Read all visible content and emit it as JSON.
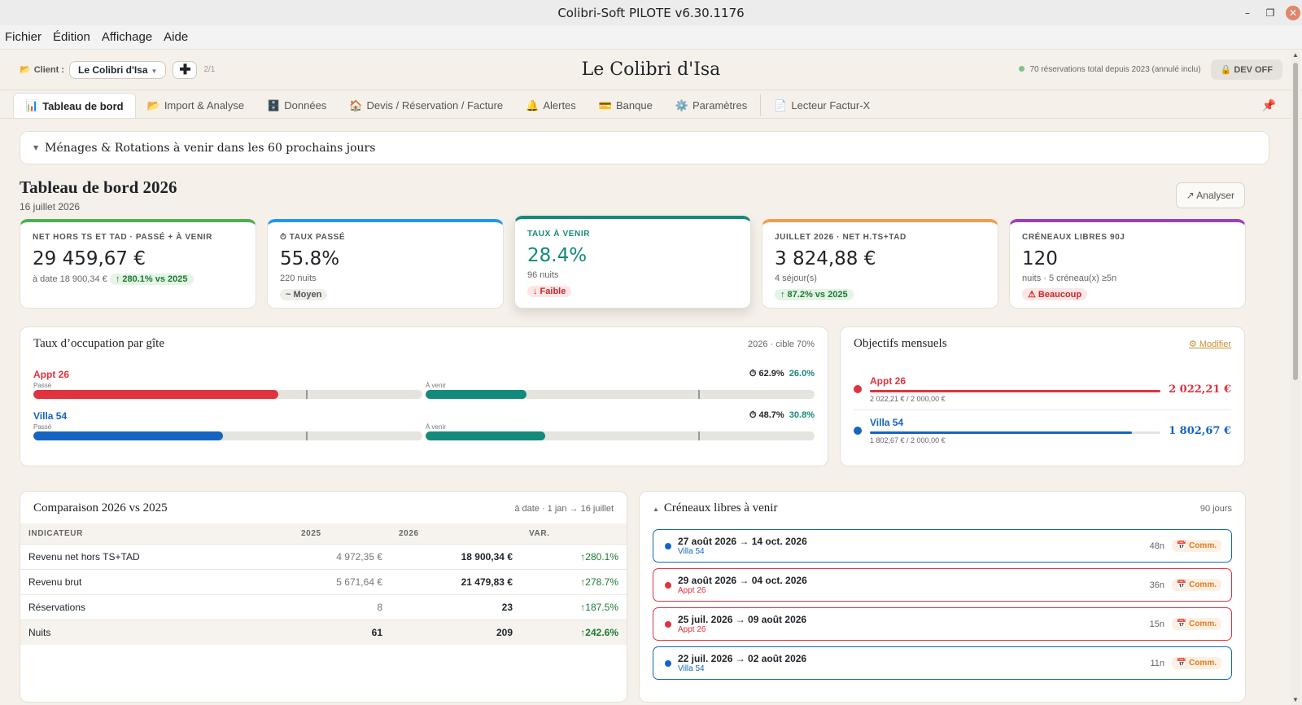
{
  "window": {
    "title": "Colibri-Soft PILOTE v6.30.1176"
  },
  "menu": [
    "Fichier",
    "Édition",
    "Affichage",
    "Aide"
  ],
  "header": {
    "client_label": "Client :",
    "client_value": "Le Colibri d'Isa",
    "count": "2/1",
    "title": "Le Colibri d'Isa",
    "status": "70 réservations total depuis 2023 (annulé inclu)",
    "dev_btn": "🔒 DEV OFF"
  },
  "tabs": [
    {
      "label": "Tableau de bord",
      "icon": "📊"
    },
    {
      "label": "Import & Analyse",
      "icon": "📂"
    },
    {
      "label": "Données",
      "icon": "🗄️"
    },
    {
      "label": "Devis / Réservation / Facture",
      "icon": "🏠"
    },
    {
      "label": "Alertes",
      "icon": "🔔"
    },
    {
      "label": "Banque",
      "icon": "💳"
    },
    {
      "label": "Paramètres",
      "icon": "⚙️"
    },
    {
      "label": "Lecteur Factur-X",
      "icon": "📄"
    }
  ],
  "collapse": "Ménages & Rotations à venir dans les 60 prochains jours",
  "dashboard": {
    "title": "Tableau de bord 2026",
    "date": "16 juillet 2026",
    "analyze": "↗ Analyser"
  },
  "kpis": [
    {
      "label": "NET HORS TS ET TAD · PASSÉ + À VENIR",
      "value": "29 459,67 €",
      "sub": "à date 18 900,34 €",
      "badge": "↑ 280.1% vs 2025",
      "color": "#4caf50"
    },
    {
      "label": "⏱ TAUX PASSÉ",
      "value": "55.8%",
      "sub": "220 nuits",
      "badge": "~ Moyen",
      "color": "#2196f3"
    },
    {
      "label": "TAUX À VENIR",
      "value": "28.4%",
      "sub": "96 nuits",
      "badge": "↓ Faible",
      "color": "#138a7a"
    },
    {
      "label": "JUILLET 2026 · NET H.TS+TAD",
      "value": "3 824,88 €",
      "sub": "4 séjour(s)",
      "badge": "↑ 87.2% vs 2025",
      "color": "#f39c4a"
    },
    {
      "label": "CRÉNEAUX LIBRES 90J",
      "value": "120",
      "sub": "nuits · 5 créneau(x) ≥5n",
      "badge": "⚠ Beaucoup",
      "color": "#9c3fbd"
    }
  ],
  "occupancy": {
    "title": "Taux d’occupation par gîte",
    "meta": "2026 · cible 70%",
    "past_cap": "Passé",
    "future_cap": "À venir",
    "rows": [
      {
        "name": "Appt 26",
        "past_pct": "⏱ 62.9%",
        "future_pct": "26.0%",
        "past": 62.9,
        "future": 26.0,
        "color": "#e0323f"
      },
      {
        "name": "Villa 54",
        "past_pct": "⏱ 48.7%",
        "future_pct": "30.8%",
        "past": 48.7,
        "future": 30.8,
        "color": "#1565c0"
      }
    ]
  },
  "objectives": {
    "title": "Objectifs mensuels",
    "edit": "⚙ Modifier",
    "rows": [
      {
        "name": "Appt 26",
        "detail": "2 022,21 € / 2 000,00 €",
        "amount": "2 022,21 €",
        "progress": 100,
        "color": "#e0323f"
      },
      {
        "name": "Villa 54",
        "detail": "1 802,67 € / 2 000,00 €",
        "amount": "1 802,67 €",
        "progress": 90.1,
        "color": "#1565c0"
      }
    ]
  },
  "comparison": {
    "title": "Comparaison 2026 vs 2025",
    "meta": "à date · 1 jan → 16 juillet",
    "headers": [
      "INDICATEUR",
      "2025",
      "2026",
      "VAR."
    ],
    "rows": [
      [
        "Revenu net hors TS+TAD",
        "4 972,35 €",
        "18 900,34 €",
        "↑280.1%"
      ],
      [
        "Revenu brut",
        "5 671,64 €",
        "21 479,83 €",
        "↑278.7%"
      ],
      [
        "Réservations",
        "8",
        "23",
        "↑187.5%"
      ],
      [
        "Nuits",
        "61",
        "209",
        "↑242.6%"
      ]
    ]
  },
  "slots": {
    "title": "Créneaux libres à venir",
    "meta": "90 jours",
    "comm": "📅 Comm.",
    "rows": [
      {
        "dates": "27 août 2026 → 14 oct. 2026",
        "gite": "Villa 54",
        "nights": "48n",
        "color": "#1565c0"
      },
      {
        "dates": "29 août 2026 → 04 oct. 2026",
        "gite": "Appt 26",
        "nights": "36n",
        "color": "#e0323f"
      },
      {
        "dates": "25 juil. 2026 → 09 août 2026",
        "gite": "Appt 26",
        "nights": "15n",
        "color": "#e0323f"
      },
      {
        "dates": "22 juil. 2026 → 02 août 2026",
        "gite": "Villa 54",
        "nights": "11n",
        "color": "#1565c0"
      }
    ]
  }
}
